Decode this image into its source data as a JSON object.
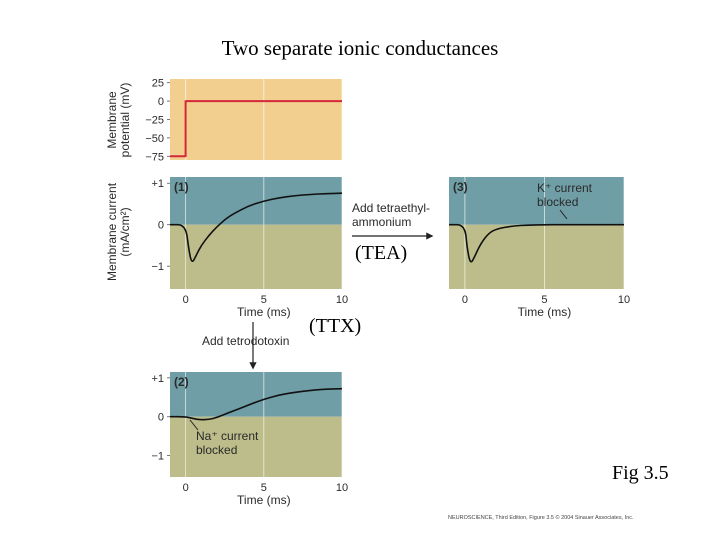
{
  "slide": {
    "title": "Two separate ionic conductances",
    "tea_note": "(TEA)",
    "ttx_note": "(TTX)",
    "figure_label": "Fig 3.5",
    "credit": "NEUROSCIENCE, Third Edition, Figure 3.5 © 2004 Sinauer Associates, Inc."
  },
  "colors": {
    "voltage_bg": "#f3cf8f",
    "current_upper_bg": "#6f9ea6",
    "current_lower_bg": "#bcbd8a",
    "voltage_trace": "#d4283a",
    "current_trace": "#111111",
    "grid": "#ffffff"
  },
  "annotations": {
    "add_tea": [
      "Add tetraethyl-",
      "ammonium"
    ],
    "add_ttx": "Add tetrodotoxin",
    "k_blocked": [
      "K⁺ current",
      "blocked"
    ],
    "na_blocked": [
      "Na⁺ current",
      "blocked"
    ]
  },
  "chart_data": [
    {
      "type": "line",
      "name": "voltage-clamp",
      "ylabel": [
        "Membrane",
        "potential (mV)"
      ],
      "xlim": [
        -1,
        10
      ],
      "ylim": [
        -80,
        30
      ],
      "yticks": [
        25,
        0,
        -25,
        -50,
        -75
      ],
      "ytick_labels": [
        "25",
        "0",
        "−25",
        "−50",
        "−75"
      ],
      "series": [
        {
          "x": [
            -1,
            0,
            0,
            10
          ],
          "y": [
            -75,
            -75,
            0,
            0
          ]
        }
      ]
    },
    {
      "type": "line",
      "name": "panel-1",
      "panel_label": "(1)",
      "ylabel": [
        "Membrane current",
        "(mA/cm²)"
      ],
      "xlabel": "Time (ms)",
      "xlim": [
        -1,
        10
      ],
      "ylim": [
        -1.55,
        1.15
      ],
      "xticks": [
        0,
        5,
        10
      ],
      "yticks": [
        1,
        0,
        -1
      ],
      "ytick_labels": [
        "+1",
        "0",
        "−1"
      ],
      "series": [
        {
          "x": [
            -1,
            0,
            0.2,
            0.4,
            0.7,
            1,
            1.5,
            2,
            2.5,
            3,
            4,
            5,
            6,
            7,
            8,
            9,
            10
          ],
          "y": [
            0,
            0,
            -0.6,
            -0.95,
            -0.72,
            -0.5,
            -0.25,
            -0.05,
            0.12,
            0.25,
            0.45,
            0.57,
            0.65,
            0.7,
            0.73,
            0.75,
            0.76
          ]
        }
      ]
    },
    {
      "type": "line",
      "name": "panel-2",
      "panel_label": "(2)",
      "xlabel": "Time (ms)",
      "xlim": [
        -1,
        10
      ],
      "ylim": [
        -1.55,
        1.15
      ],
      "xticks": [
        0,
        5,
        10
      ],
      "yticks": [
        1,
        0,
        -1
      ],
      "ytick_labels": [
        "+1",
        "0",
        "−1"
      ],
      "series": [
        {
          "x": [
            -1,
            0,
            0.5,
            1,
            1.5,
            2,
            2.5,
            3,
            4,
            5,
            6,
            7,
            8,
            9,
            10
          ],
          "y": [
            0,
            0,
            -0.05,
            -0.08,
            -0.07,
            -0.02,
            0.06,
            0.14,
            0.3,
            0.45,
            0.56,
            0.63,
            0.68,
            0.71,
            0.72
          ]
        }
      ]
    },
    {
      "type": "line",
      "name": "panel-3",
      "panel_label": "(3)",
      "xlabel": "Time (ms)",
      "xlim": [
        -1,
        10
      ],
      "ylim": [
        -1.55,
        1.15
      ],
      "xticks": [
        0,
        5,
        10
      ],
      "series": [
        {
          "x": [
            -1,
            0,
            0.15,
            0.35,
            0.6,
            1,
            1.5,
            2,
            3,
            4,
            5,
            6,
            10
          ],
          "y": [
            0,
            0,
            -0.6,
            -0.95,
            -0.78,
            -0.45,
            -0.2,
            -0.1,
            -0.03,
            -0.01,
            0,
            0,
            0
          ]
        }
      ]
    }
  ]
}
